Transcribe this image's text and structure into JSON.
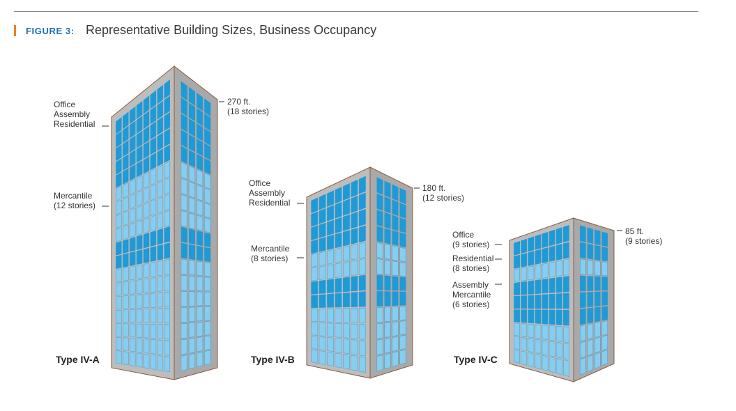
{
  "header": {
    "figure_label": "FIGURE 3:",
    "title": "Representative Building Sizes, Business Occupancy"
  },
  "colors": {
    "accent_bar": "#ef7d2d",
    "figure_label": "#1e6fb4",
    "window_light": "#86cdef",
    "window_dark": "#1d9bd8",
    "frame": "#bdbdbd",
    "outline": "#8a5a3c"
  },
  "buildings": [
    {
      "type_label": "Type IV-A",
      "height_label": "270 ft.",
      "stories_label": "(18 stories)",
      "stories": 18,
      "occupancy_groups": [
        {
          "lines": [
            "Office",
            "Assembly",
            "Residential"
          ]
        },
        {
          "lines": [
            "Mercantile",
            "(12 stories)"
          ]
        }
      ]
    },
    {
      "type_label": "Type IV-B",
      "height_label": "180 ft.",
      "stories_label": "(12 stories)",
      "stories": 12,
      "occupancy_groups": [
        {
          "lines": [
            "Office",
            "Assembly",
            "Residential"
          ]
        },
        {
          "lines": [
            "Mercantile",
            "(8 stories)"
          ]
        }
      ]
    },
    {
      "type_label": "Type IV-C",
      "height_label": "85 ft.",
      "stories_label": "(9 stories)",
      "stories": 9,
      "occupancy_groups": [
        {
          "lines": [
            "Office",
            "(9 stories)"
          ]
        },
        {
          "lines": [
            "Residential",
            "(8 stories)"
          ]
        },
        {
          "lines": [
            "Assembly",
            "Mercantile",
            "(6 stories)"
          ]
        }
      ]
    }
  ]
}
